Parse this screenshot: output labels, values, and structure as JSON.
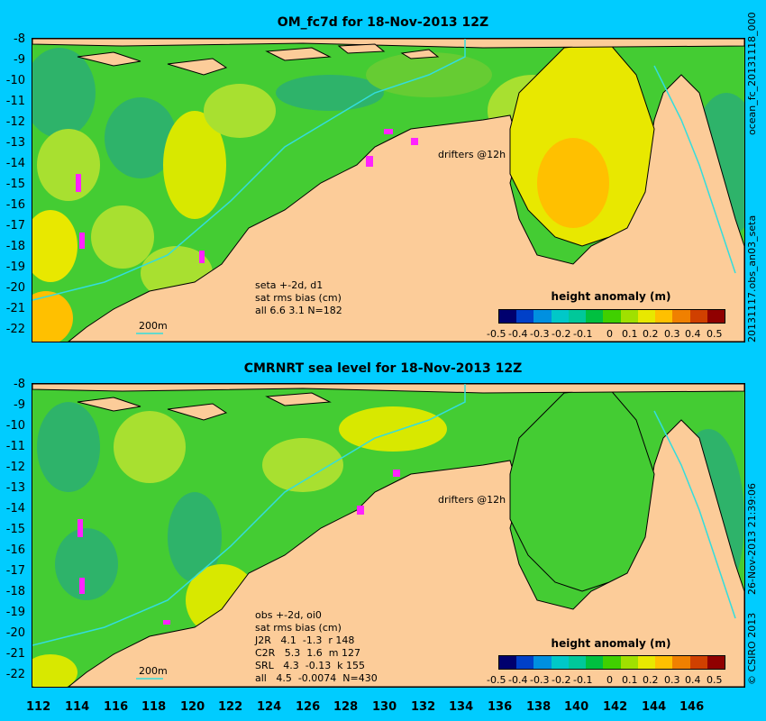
{
  "panel1": {
    "title": "OM_fc7d for 18-Nov-2013 12Z",
    "side_label": "ocean_fc_20131118_000",
    "side_label2": "20131117.obs_an03_seta",
    "drifters_label": "drifters @12h",
    "scale_label": "200m",
    "annotation": "seta +-2d, d1\nsat rms bias (cm)\nall 6.6 3.1 N=182"
  },
  "panel2": {
    "title": "CMRNRT sea level  for 18-Nov-2013 12Z",
    "side_label": "26-Nov-2013 21:39:06",
    "side_label2": "© CSIRO 2013",
    "drifters_label": "drifters @12h",
    "scale_label": "200m",
    "annotation": "obs +-2d, oi0\nsat rms bias (cm)\nJ2R   4.1  -1.3  r 148\nC2R   5.3  1.6  m 127\nSRL   4.3  -0.13  k 155\nall   4.5  -0.0074  N=430"
  },
  "colorbar": {
    "title": "height anomaly (m)",
    "ticks": [
      "-0.5",
      "-0.4",
      "-0.3",
      "-0.2",
      "-0.1",
      "0",
      "0.1",
      "0.2",
      "0.3",
      "0.4",
      "0.5"
    ],
    "colors": [
      "#00006e",
      "#0040c8",
      "#0090e0",
      "#00c8c8",
      "#00c89a",
      "#00c040",
      "#40d000",
      "#a0e000",
      "#e8e800",
      "#ffc000",
      "#f08000",
      "#d04000",
      "#900000"
    ]
  },
  "axes": {
    "y_ticks": [
      "-8",
      "-9",
      "-10",
      "-11",
      "-12",
      "-13",
      "-14",
      "-15",
      "-16",
      "-17",
      "-18",
      "-19",
      "-20",
      "-21",
      "-22"
    ],
    "x_ticks": [
      "112",
      "114",
      "116",
      "118",
      "120",
      "122",
      "124",
      "126",
      "128",
      "130",
      "132",
      "134",
      "136",
      "138",
      "140",
      "142",
      "144",
      "146"
    ]
  },
  "colors": {
    "background": "#00ccff",
    "land": "#fccc99",
    "shelf_line": "#33dddd",
    "drifters": "#ff22ff"
  }
}
